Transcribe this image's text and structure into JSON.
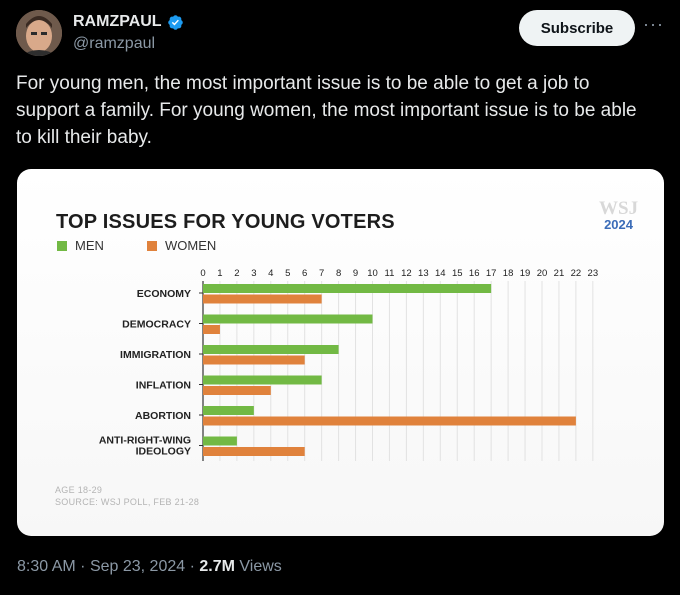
{
  "author": {
    "display_name": "RAMZPAUL",
    "handle": "@ramzpaul",
    "verified": true
  },
  "subscribe_label": "Subscribe",
  "more_label": "···",
  "tweet": {
    "text": "For young men, the most important issue is to be able to get a job to support a family. For young women, the most important issue is to be able to kill their baby."
  },
  "meta": {
    "time": "8:30 AM",
    "separator": "·",
    "date": "Sep 23, 2024",
    "views_count": "2.7M",
    "views_label": "Views"
  },
  "media": {
    "wsj_label": "WSJ",
    "year_label": "2024",
    "footnote_age": "AGE 18-29",
    "footnote_source": "SOURCE: WSJ POLL, FEB 21-28"
  },
  "colors": {
    "men": "#72b944",
    "women": "#e0823c",
    "verified_badge": "#1d9bf0"
  },
  "chart_data": {
    "type": "bar",
    "orientation": "horizontal",
    "title": "TOP ISSUES FOR YOUNG VOTERS",
    "categories": [
      "ECONOMY",
      "DEMOCRACY",
      "IMMIGRATION",
      "INFLATION",
      "ABORTION",
      "ANTI-RIGHT-WING IDEOLOGY"
    ],
    "category_lines": [
      [
        "ECONOMY"
      ],
      [
        "DEMOCRACY"
      ],
      [
        "IMMIGRATION"
      ],
      [
        "INFLATION"
      ],
      [
        "ABORTION"
      ],
      [
        "ANTI-RIGHT-WING",
        "IDEOLOGY"
      ]
    ],
    "series": [
      {
        "name": "MEN",
        "values": [
          17,
          10,
          8,
          7,
          3,
          2
        ]
      },
      {
        "name": "WOMEN",
        "values": [
          7,
          1,
          6,
          4,
          22,
          6
        ]
      }
    ],
    "xlim": [
      0,
      23
    ],
    "xticks": [
      0,
      1,
      2,
      3,
      4,
      5,
      6,
      7,
      8,
      9,
      10,
      11,
      12,
      13,
      14,
      15,
      16,
      17,
      18,
      19,
      20,
      21,
      22,
      23
    ],
    "grid": true,
    "legend_position": "top-left"
  }
}
